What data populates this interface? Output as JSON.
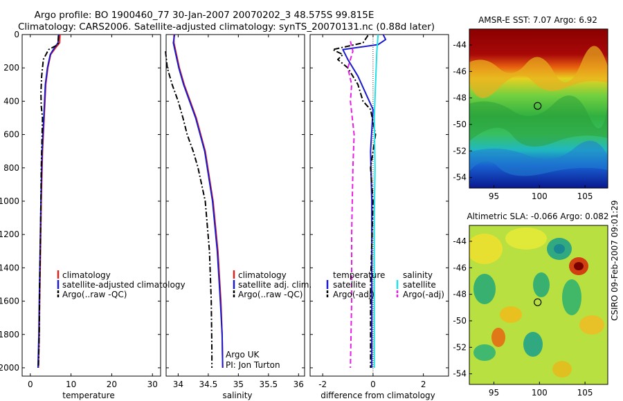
{
  "header": {
    "line1": "Argo profile: BO 1900460_77 30-Jan-2007 20070202_3 48.575S 99.815E",
    "line2": "Climatology: CARS2006. Satellite-adjusted climatology: synTS_20070131.nc (0.88d later)"
  },
  "colors": {
    "climatology": "#e0201c",
    "satellite": "#1a1acc",
    "argo": "#000000",
    "satellite_salinity_diff": "#22e0e8",
    "argo_salinity_diff": "#e61ee6"
  },
  "chart_data": [
    {
      "id": "temperature",
      "type": "line",
      "xlabel": "temperature",
      "xlim": [
        -2,
        32
      ],
      "ylim": [
        0,
        2050
      ],
      "xticks": [
        "0",
        "10",
        "20",
        "30"
      ],
      "xtick_values": [
        0,
        10,
        20,
        30
      ],
      "yticks": [
        "0",
        "200",
        "400",
        "600",
        "800",
        "1000",
        "1200",
        "1400",
        "1600",
        "1800",
        "2000"
      ],
      "ytick_values": [
        0,
        200,
        400,
        600,
        800,
        1000,
        1200,
        1400,
        1600,
        1800,
        2000
      ],
      "y_reversed": true,
      "legend": [
        "climatology",
        "satellite-adjusted climatology",
        "Argo(..raw -QC)"
      ],
      "series": [
        {
          "name": "climatology",
          "style": "solid",
          "color_key": "climatology",
          "x": [
            7.3,
            7.2,
            6.2,
            5.0,
            4.3,
            3.8,
            3.4,
            3.0,
            2.7,
            2.5,
            2.3,
            2.2,
            2.0
          ],
          "y": [
            0,
            50,
            80,
            120,
            200,
            300,
            500,
            700,
            1000,
            1300,
            1600,
            1800,
            2000
          ]
        },
        {
          "name": "satellite-adjusted climatology",
          "style": "solid",
          "color_key": "satellite",
          "x": [
            7.0,
            6.8,
            5.9,
            4.9,
            4.2,
            3.7,
            3.3,
            2.9,
            2.6,
            2.4,
            2.2,
            2.1,
            1.9
          ],
          "y": [
            0,
            50,
            80,
            120,
            200,
            300,
            500,
            700,
            1000,
            1300,
            1600,
            1800,
            2000
          ]
        },
        {
          "name": "Argo(..raw -QC)",
          "style": "dashdot",
          "color_key": "argo",
          "x": [
            6.9,
            6.8,
            4.5,
            3.2,
            2.8,
            2.6,
            2.7,
            3.0,
            2.9,
            2.7,
            2.6,
            2.5,
            2.3,
            2.2,
            2.0
          ],
          "y": [
            5,
            60,
            90,
            150,
            250,
            350,
            430,
            500,
            600,
            800,
            1000,
            1200,
            1500,
            1800,
            2000
          ]
        }
      ]
    },
    {
      "id": "salinity",
      "type": "line",
      "xlabel": "salinity",
      "xlim": [
        33.8,
        36.1
      ],
      "ylim": [
        0,
        2050
      ],
      "xticks": [
        "34",
        "34.5",
        "35",
        "35.5",
        "36"
      ],
      "xtick_values": [
        34,
        34.5,
        35,
        35.5,
        36
      ],
      "y_reversed": true,
      "legend": [
        "climatology",
        "satellite adj. clim.",
        "Argo(..raw -QC)"
      ],
      "annotation": [
        "Argo UK",
        "PI: Jon Turton"
      ],
      "series": [
        {
          "name": "climatology",
          "style": "solid",
          "color_key": "climatology",
          "x": [
            33.93,
            33.93,
            33.96,
            34.02,
            34.1,
            34.2,
            34.3,
            34.45,
            34.58,
            34.66,
            34.71,
            34.73,
            34.74
          ],
          "y": [
            0,
            50,
            100,
            200,
            300,
            400,
            500,
            700,
            1000,
            1300,
            1600,
            1800,
            2000
          ]
        },
        {
          "name": "satellite adj. clim.",
          "style": "solid",
          "color_key": "satellite",
          "x": [
            33.94,
            33.92,
            33.95,
            34.01,
            34.09,
            34.19,
            34.29,
            34.44,
            34.57,
            34.65,
            34.7,
            34.73,
            34.74
          ],
          "y": [
            0,
            50,
            100,
            200,
            300,
            400,
            500,
            700,
            1000,
            1300,
            1600,
            1800,
            2000
          ]
        },
        {
          "name": "Argo(..raw -QC)",
          "style": "dashdot",
          "color_key": "argo",
          "x": [
            33.79,
            33.82,
            33.9,
            34.0,
            34.08,
            34.15,
            34.25,
            34.33,
            34.45,
            34.52,
            34.55,
            34.56,
            34.56
          ],
          "y": [
            100,
            200,
            300,
            400,
            500,
            600,
            700,
            800,
            1000,
            1300,
            1600,
            1900,
            2000
          ]
        }
      ]
    },
    {
      "id": "difference",
      "type": "line",
      "xlabel": "difference from climatology",
      "xlim": [
        -2.5,
        3.0
      ],
      "ylim": [
        0,
        2050
      ],
      "xticks": [
        "-2",
        "0",
        "2"
      ],
      "xtick_values": [
        -2,
        0,
        2
      ],
      "y_reversed": true,
      "legend_left_title": "temperature",
      "legend_left": [
        "satellite",
        "Argo(-adj)"
      ],
      "legend_right_title": "salinity",
      "legend_right": [
        "satellite",
        "Argo(-adj)"
      ],
      "series": [
        {
          "name": "temperature satellite",
          "style": "solid",
          "color_key": "satellite",
          "x": [
            0.4,
            0.5,
            0.2,
            -1.2,
            -1.0,
            -0.6,
            -0.3,
            0.0,
            -0.1,
            -0.05,
            -0.05,
            -0.05,
            -0.05
          ],
          "y": [
            0,
            30,
            60,
            90,
            150,
            250,
            350,
            450,
            700,
            1000,
            1300,
            1700,
            2000
          ]
        },
        {
          "name": "temperature Argo(-adj)",
          "style": "dashdot",
          "color_key": "argo",
          "x": [
            -0.2,
            -0.4,
            -1.6,
            -1.2,
            -1.4,
            -1.0,
            -0.6,
            -0.4,
            -0.1,
            0.1,
            -0.1,
            0.0,
            -0.1,
            -0.1
          ],
          "y": [
            5,
            50,
            90,
            120,
            150,
            200,
            300,
            400,
            450,
            600,
            800,
            1000,
            1500,
            2000
          ]
        },
        {
          "name": "salinity satellite",
          "style": "solid",
          "color_key": "satellite_salinity_diff",
          "x": [
            0.2,
            0.15,
            0.1,
            0.05,
            0.08,
            0.05,
            0.05,
            0.05,
            0.05
          ],
          "y": [
            0,
            100,
            300,
            500,
            800,
            1100,
            1400,
            1700,
            2000
          ]
        },
        {
          "name": "salinity Argo(-adj)",
          "style": "dashed",
          "color_key": "argo_salinity_diff",
          "x": [
            -0.9,
            -0.8,
            -1.0,
            -0.85,
            -0.9,
            -0.75,
            -0.8,
            -0.85,
            -0.85,
            -0.9
          ],
          "y": [
            40,
            100,
            200,
            300,
            400,
            600,
            800,
            1200,
            1600,
            2000
          ]
        }
      ]
    },
    {
      "id": "sst_map",
      "type": "heatmap",
      "title": "AMSR-E SST: 7.07 Argo: 6.92",
      "xticks": [
        "95",
        "100",
        "105"
      ],
      "xtick_values": [
        95,
        100,
        105
      ],
      "yticks": [
        "-44",
        "-46",
        "-48",
        "-50",
        "-52",
        "-54"
      ],
      "ytick_values": [
        -44,
        -46,
        -48,
        -50,
        -52,
        -54
      ],
      "xlim": [
        92.3,
        107.5
      ],
      "ylim": [
        -54.8,
        -42.8
      ],
      "marker": {
        "lon": 99.8,
        "lat": -48.6
      }
    },
    {
      "id": "sla_map",
      "type": "heatmap",
      "title": "Altimetric SLA: -0.066 Argo: 0.082",
      "xticks": [
        "95",
        "100",
        "105"
      ],
      "xtick_values": [
        95,
        100,
        105
      ],
      "yticks": [
        "-44",
        "-46",
        "-48",
        "-50",
        "-52",
        "-54"
      ],
      "ytick_values": [
        -44,
        -46,
        -48,
        -50,
        -52,
        -54
      ],
      "xlim": [
        92.3,
        107.5
      ],
      "ylim": [
        -54.8,
        -42.8
      ],
      "marker": {
        "lon": 99.8,
        "lat": -48.6
      }
    }
  ],
  "side_label": "CSIRO 09-Feb-2007 09:01:29"
}
